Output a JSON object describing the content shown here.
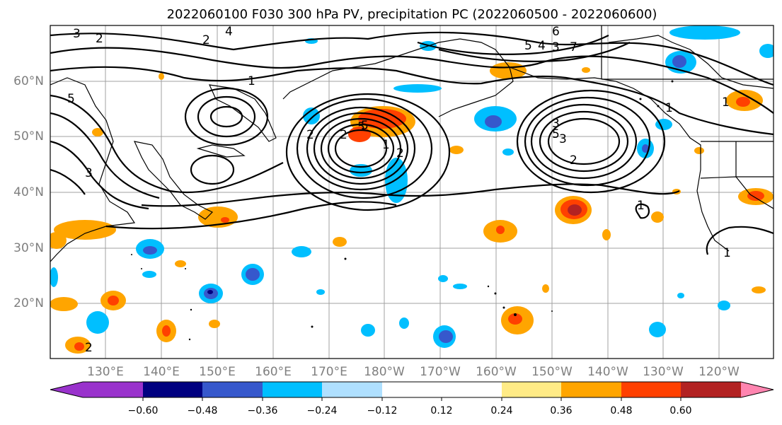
{
  "title": "2022060100 F030 300 hPa PV, precipitation PC (2022060500 - 2022060600)",
  "lat_labels": [
    "60°N",
    "50°N",
    "40°N",
    "30°N",
    "20°N"
  ],
  "lon_labels": [
    "130°E",
    "140°E",
    "150°E",
    "160°E",
    "170°E",
    "180°W",
    "170°W",
    "160°W",
    "150°W",
    "140°W",
    "130°W",
    "120°W"
  ],
  "colorbar": {
    "tick_labels": [
      "−0.60",
      "−0.48",
      "−0.36",
      "−0.24",
      "−0.12",
      "0.12",
      "0.24",
      "0.36",
      "0.48",
      "0.60"
    ],
    "under_color": "#9932cc",
    "over_color": "#ff85b0",
    "colors": [
      "#000080",
      "#3658cc",
      "#00bfff",
      "#afe0ff",
      "#ffffff",
      "#ffffff",
      "#ffeb86",
      "#ffa500",
      "#ff4000",
      "#b22222"
    ]
  },
  "pv_contour_labels": [
    "3",
    "4",
    "2",
    "5",
    "6",
    "5",
    "4",
    "3",
    "7",
    "1",
    "2",
    "5",
    "2",
    "1",
    "3",
    "2",
    "3",
    "5",
    "2",
    "5",
    "2",
    "1",
    "3",
    "2",
    "1",
    "1",
    "1"
  ],
  "colors": {
    "grid": "#9a9a9a",
    "contour": "#000000",
    "coast": "#000000"
  }
}
